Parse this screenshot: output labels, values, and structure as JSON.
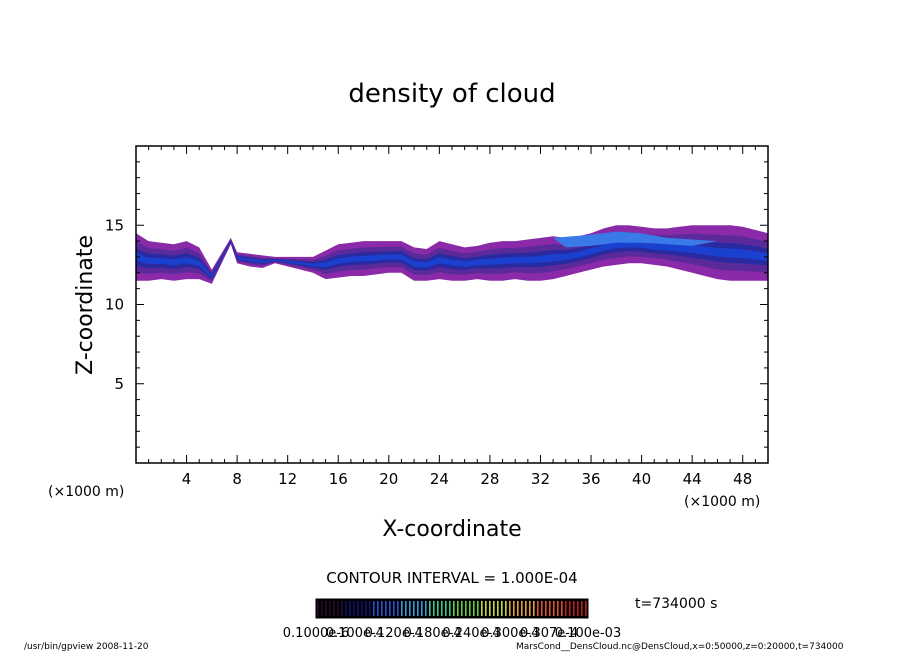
{
  "chart_data": {
    "type": "heatmap",
    "title": "density of cloud",
    "xlabel": "X-coordinate",
    "ylabel": "Z-coordinate",
    "x_unit": "(×1000 m)",
    "y_unit": "(×1000 m)",
    "xlim": [
      0,
      50
    ],
    "ylim": [
      0,
      20
    ],
    "x_ticks": [
      4,
      8,
      12,
      16,
      20,
      24,
      28,
      32,
      36,
      40,
      44,
      48
    ],
    "y_ticks": [
      5,
      10,
      15
    ],
    "contour_interval": "CONTOUR INTERVAL = 1.000E-04",
    "time_label": "t=734000 s",
    "colorbar_labels": [
      "0.1000e-6",
      "0.100e-4",
      "0.120e-4",
      "0.180e-4",
      "0.240e-4",
      "0.300e-4",
      "0.307e-4",
      "0.100e-03"
    ],
    "colorbar_colors": [
      "#2a0b2e",
      "#101070",
      "#2850d0",
      "#3a9ad8",
      "#3cc890",
      "#60d040",
      "#c8d840",
      "#e0a040",
      "#e05030",
      "#b82020"
    ],
    "cloud_colors": {
      "edge": "#8a2aa8",
      "mid": "#5a2a9a",
      "core": "#2a2aa0",
      "dense": "#1a40d0",
      "peak": "#3a7ae8"
    },
    "cloud_band": {
      "x": [
        0,
        1,
        2,
        3,
        4,
        5,
        6,
        7.5,
        8,
        9,
        10,
        11,
        14,
        15,
        16,
        17,
        18,
        19,
        20,
        21,
        22,
        23,
        24,
        25,
        26,
        27,
        28,
        29,
        30,
        31,
        32,
        33,
        34,
        35,
        36,
        37,
        38,
        39,
        40,
        41,
        42,
        43,
        44,
        45,
        46,
        47,
        48,
        49,
        50
      ],
      "ztop": [
        14.5,
        14.0,
        13.9,
        13.8,
        14.0,
        13.6,
        12.2,
        14.2,
        13.3,
        13.2,
        13.1,
        13.0,
        13.0,
        13.4,
        13.8,
        13.9,
        14.0,
        14.0,
        14.0,
        14.0,
        13.6,
        13.5,
        14.0,
        13.8,
        13.6,
        13.7,
        13.9,
        14.0,
        14.0,
        14.1,
        14.2,
        14.3,
        14.2,
        14.3,
        14.5,
        14.8,
        15.0,
        15.0,
        14.9,
        14.8,
        14.8,
        14.9,
        15.0,
        15.0,
        15.0,
        15.0,
        14.9,
        14.7,
        14.5
      ],
      "zbot": [
        11.5,
        11.5,
        11.6,
        11.5,
        11.6,
        11.6,
        11.3,
        13.8,
        12.6,
        12.4,
        12.3,
        12.6,
        12.0,
        11.6,
        11.7,
        11.8,
        11.8,
        11.9,
        12.0,
        12.0,
        11.5,
        11.5,
        11.6,
        11.5,
        11.5,
        11.6,
        11.5,
        11.5,
        11.6,
        11.5,
        11.5,
        11.6,
        11.8,
        12.0,
        12.2,
        12.4,
        12.5,
        12.6,
        12.6,
        12.5,
        12.4,
        12.2,
        12.0,
        11.8,
        11.6,
        11.5,
        11.5,
        11.5,
        11.5
      ],
      "gaps_x": [
        [
          6.4,
          7.3
        ],
        [
          11.2,
          13.8
        ]
      ]
    }
  },
  "footer": {
    "left": "/usr/bin/gpview   2008-11-20",
    "right": "MarsCond__DensCloud.nc@DensCloud,x=0:50000,z=0:20000,t=734000"
  }
}
